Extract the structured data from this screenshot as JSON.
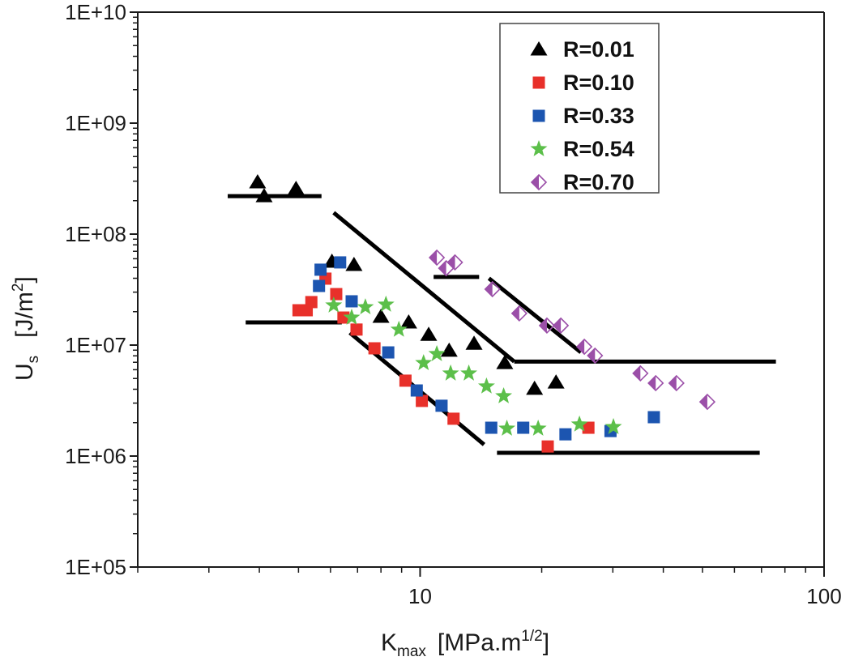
{
  "chart_data": {
    "type": "scatter",
    "title": "",
    "xlabel": {
      "main": "K",
      "sub": "max",
      "units_pre": "[MPa.m",
      "units_sup": "1/2",
      "units_post": "]"
    },
    "ylabel": {
      "main": "U",
      "sub": "s",
      "units_pre": "[J/m",
      "units_sup": "2",
      "units_post": "]"
    },
    "xscale": "log",
    "yscale": "log",
    "xlim": [
      2,
      100
    ],
    "ylim": [
      100000,
      10000000000
    ],
    "x_ticks": [
      {
        "value": 10,
        "label": "10"
      },
      {
        "value": 100,
        "label": "100"
      }
    ],
    "y_ticks": [
      {
        "value": 100000,
        "label": "1E+05"
      },
      {
        "value": 1000000,
        "label": "1E+06"
      },
      {
        "value": 10000000,
        "label": "1E+07"
      },
      {
        "value": 100000000,
        "label": "1E+08"
      },
      {
        "value": 1000000000,
        "label": "1E+09"
      },
      {
        "value": 10000000000,
        "label": "1E+10"
      }
    ],
    "grid": false,
    "legend_position": "top-right",
    "series": [
      {
        "name": "R=0.01",
        "marker": "triangle",
        "color": "#000000",
        "points": [
          [
            3.96,
            293000000.0
          ],
          [
            4.11,
            220000000.0
          ],
          [
            4.93,
            256000000.0
          ],
          [
            6.05,
            56500000.0
          ],
          [
            6.86,
            52800000.0
          ],
          [
            8.0,
            18000000.0
          ],
          [
            9.37,
            16000000.0
          ],
          [
            10.5,
            12400000.0
          ],
          [
            11.8,
            8900000.0
          ],
          [
            13.6,
            10300000.0
          ],
          [
            16.2,
            6900000.0
          ],
          [
            19.2,
            4040000.0
          ],
          [
            21.7,
            4610000.0
          ]
        ]
      },
      {
        "name": "R=0.10",
        "marker": "square",
        "color": "#e8302a",
        "points": [
          [
            5.0,
            20600000.0
          ],
          [
            5.24,
            20600000.0
          ],
          [
            5.38,
            24400000.0
          ],
          [
            5.83,
            39700000.0
          ],
          [
            6.2,
            28800000.0
          ],
          [
            6.46,
            17700000.0
          ],
          [
            6.96,
            13800000.0
          ],
          [
            7.71,
            9350000.0
          ],
          [
            9.2,
            4780000.0
          ],
          [
            10.1,
            3140000.0
          ],
          [
            12.1,
            2170000.0
          ],
          [
            20.7,
            1220000.0
          ],
          [
            26.1,
            1800000.0
          ]
        ]
      },
      {
        "name": "R=0.33",
        "marker": "square",
        "color": "#1c55b0",
        "points": [
          [
            5.62,
            34100000.0
          ],
          [
            5.67,
            47800000.0
          ],
          [
            6.34,
            55600000.0
          ],
          [
            6.77,
            24800000.0
          ],
          [
            8.34,
            8590000.0
          ],
          [
            9.81,
            3900000.0
          ],
          [
            11.3,
            2840000.0
          ],
          [
            15.0,
            1800000.0
          ],
          [
            18.0,
            1800000.0
          ],
          [
            22.9,
            1570000.0
          ],
          [
            29.6,
            1680000.0
          ],
          [
            37.9,
            2240000.0
          ]
        ]
      },
      {
        "name": "R=0.54",
        "marker": "star",
        "color": "#5cbf4a",
        "points": [
          [
            6.11,
            22800000.0
          ],
          [
            6.77,
            17700000.0
          ],
          [
            7.32,
            22000000.0
          ],
          [
            8.23,
            23200000.0
          ],
          [
            8.86,
            13800000.0
          ],
          [
            10.2,
            6900000.0
          ],
          [
            11.0,
            8320000.0
          ],
          [
            11.9,
            5560000.0
          ],
          [
            13.2,
            5560000.0
          ],
          [
            14.6,
            4250000.0
          ],
          [
            16.1,
            3470000.0
          ],
          [
            16.4,
            1770000.0
          ],
          [
            19.6,
            1770000.0
          ],
          [
            24.8,
            1930000.0
          ],
          [
            30.1,
            1830000.0
          ]
        ]
      },
      {
        "name": "R=0.70",
        "marker": "half-diamond",
        "color": "#9b4fa8",
        "points": [
          [
            11.0,
            61400000.0
          ],
          [
            11.6,
            49300000.0
          ],
          [
            12.2,
            55600000.0
          ],
          [
            15.1,
            31900000.0
          ],
          [
            17.6,
            19300000.0
          ],
          [
            20.6,
            15000000.0
          ],
          [
            22.3,
            15000000.0
          ],
          [
            25.5,
            9660000.0
          ],
          [
            27.1,
            8030000.0
          ],
          [
            35.1,
            5560000.0
          ],
          [
            38.3,
            4540000.0
          ],
          [
            43.1,
            4540000.0
          ],
          [
            51.4,
            3080000.0
          ]
        ]
      }
    ],
    "trend_lines": [
      {
        "name": "upper-plateau-low-k",
        "from": [
          3.34,
          220000000.0
        ],
        "to": [
          5.7,
          220000000.0
        ]
      },
      {
        "name": "upper-slope",
        "from": [
          6.11,
          156000000.0
        ],
        "to": [
          17.1,
          7100000.0
        ]
      },
      {
        "name": "upper-plateau-high-k",
        "from": [
          17.1,
          7100000.0
        ],
        "to": [
          76,
          7100000.0
        ]
      },
      {
        "name": "lower-plateau-low-k",
        "from": [
          3.7,
          16000000.0
        ],
        "to": [
          6.4,
          16000000.0
        ]
      },
      {
        "name": "lower-slope",
        "from": [
          6.7,
          12900000.0
        ],
        "to": [
          14.4,
          1270000.0
        ]
      },
      {
        "name": "lower-plateau-high-k",
        "from": [
          15.5,
          1070000.0
        ],
        "to": [
          69.3,
          1070000.0
        ]
      },
      {
        "name": "r070-plateau-low-k",
        "from": [
          10.8,
          41100000.0
        ],
        "to": [
          14.0,
          41100000.0
        ]
      },
      {
        "name": "r070-slope",
        "from": [
          14.8,
          40000000.0
        ],
        "to": [
          25.0,
          8600000.0
        ]
      }
    ]
  }
}
